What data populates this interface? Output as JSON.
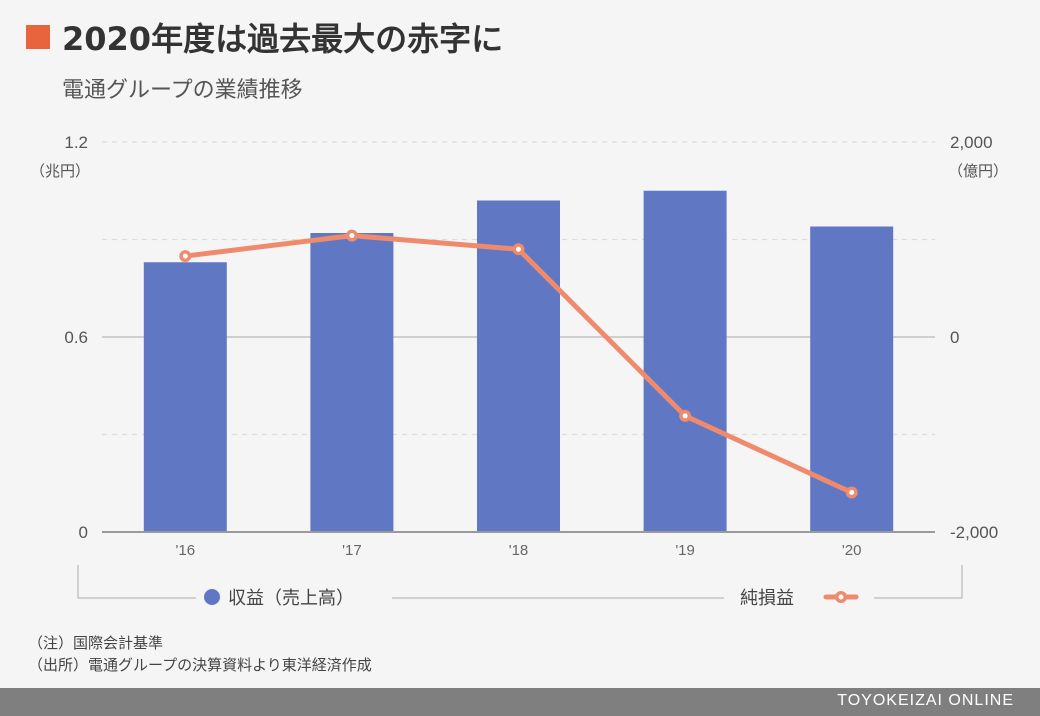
{
  "header": {
    "title": "2020年度は過去最大の赤字に",
    "subtitle": "電通グループの業績推移",
    "accent_color": "#e8643c"
  },
  "chart_data": {
    "type": "bar",
    "categories": [
      "'16",
      "'17",
      "'18",
      "'19",
      "'20"
    ],
    "series": [
      {
        "name": "収益（売上高）",
        "type": "bar",
        "axis": "left",
        "unit": "兆円",
        "color": "#6078c4",
        "values": [
          0.83,
          0.92,
          1.02,
          1.05,
          0.94
        ]
      },
      {
        "name": "純損益",
        "type": "line",
        "axis": "right",
        "unit": "億円",
        "color": "#ef8b6c",
        "values": [
          830,
          1040,
          900,
          -809,
          -1595
        ]
      }
    ],
    "left_axis": {
      "unit_label": "（兆円）",
      "ylim": [
        0,
        1.2
      ],
      "ticks": [
        {
          "value": 0,
          "label": "0"
        },
        {
          "value": 0.6,
          "label": "0.6"
        },
        {
          "value": 1.2,
          "label": "1.2"
        }
      ]
    },
    "right_axis": {
      "unit_label": "（億円）",
      "ylim": [
        -2000,
        2000
      ],
      "ticks": [
        {
          "value": -2000,
          "label": "-2,000"
        },
        {
          "value": 0,
          "label": "0"
        },
        {
          "value": 2000,
          "label": "2,000"
        }
      ]
    },
    "grid": true,
    "legend_position": "bottom"
  },
  "notes": {
    "note": "（注）国際会計基準",
    "source": "（出所）電通グループの決算資料より東洋経済作成"
  },
  "footer": {
    "brand": "TOYOKEIZAI ONLINE"
  }
}
